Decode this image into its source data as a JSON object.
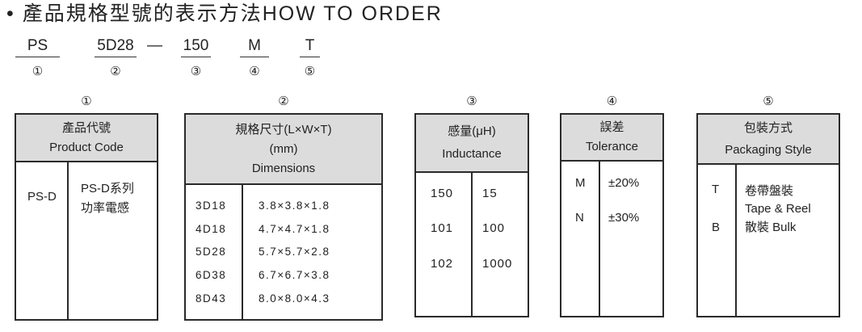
{
  "title": "• 產品規格型號的表示方法HOW TO ORDER",
  "order_code": [
    {
      "code": "PS",
      "num": "①"
    },
    {
      "code": "5D28",
      "num": "②"
    },
    {
      "code": "150",
      "num": "③"
    },
    {
      "code": "M",
      "num": "④"
    },
    {
      "code": "T",
      "num": "⑤"
    }
  ],
  "dash": "—",
  "tables": {
    "product": {
      "num": "①",
      "h1": "產品代號",
      "h2": "Product Code",
      "rows": [
        {
          "k": "PS-D",
          "v1": "PS-D系列",
          "v2": "功率電感"
        }
      ]
    },
    "dimensions": {
      "num": "②",
      "h1": "規格尺寸(L×W×T)",
      "h2": "(mm)",
      "h3": "Dimensions",
      "rows": [
        {
          "k": "3D18",
          "v": "3.8×3.8×1.8"
        },
        {
          "k": "4D18",
          "v": "4.7×4.7×1.8"
        },
        {
          "k": "5D28",
          "v": "5.7×5.7×2.8"
        },
        {
          "k": "6D38",
          "v": "6.7×6.7×3.8"
        },
        {
          "k": "8D43",
          "v": "8.0×8.0×4.3"
        }
      ]
    },
    "inductance": {
      "num": "③",
      "h1": "感量(μH)",
      "h2": "Inductance",
      "rows": [
        {
          "k": "150",
          "v": "15"
        },
        {
          "k": "101",
          "v": "100"
        },
        {
          "k": "102",
          "v": "1000"
        }
      ]
    },
    "tolerance": {
      "num": "④",
      "h1": "誤差",
      "h2": "Tolerance",
      "rows": [
        {
          "k": "M",
          "v": "±20%"
        },
        {
          "k": "N",
          "v": "±30%"
        }
      ]
    },
    "packaging": {
      "num": "⑤",
      "h1": "包裝方式",
      "h2": "Packaging Style",
      "rows": [
        {
          "k": "T",
          "v1": "卷帶盤裝",
          "v2": "Tape & Reel"
        },
        {
          "k": "B",
          "v1": "散裝 Bulk"
        }
      ]
    }
  }
}
